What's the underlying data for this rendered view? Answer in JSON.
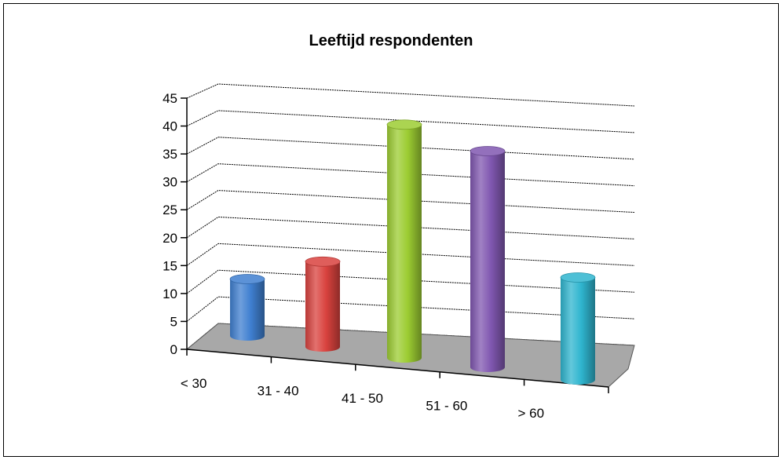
{
  "chart_data": {
    "type": "bar",
    "title": "Leeftijd respondenten",
    "xlabel": "",
    "ylabel": "",
    "categories": [
      "< 30",
      "31 - 40",
      "41 - 50",
      "51 - 60",
      "> 60"
    ],
    "values": [
      10,
      15,
      41,
      38,
      18
    ],
    "ylim": [
      0,
      45
    ],
    "yticks": [
      "0",
      "5",
      "10",
      "15",
      "20",
      "25",
      "30",
      "35",
      "40",
      "45"
    ],
    "grid": true,
    "legend": "none",
    "style": "3d-cylinder",
    "colors": [
      "#3f7fd0",
      "#d9423e",
      "#9ccc32",
      "#8057b0",
      "#2fb5cf"
    ],
    "floor_color": "#a8a8a8",
    "border_color": "#000000"
  }
}
